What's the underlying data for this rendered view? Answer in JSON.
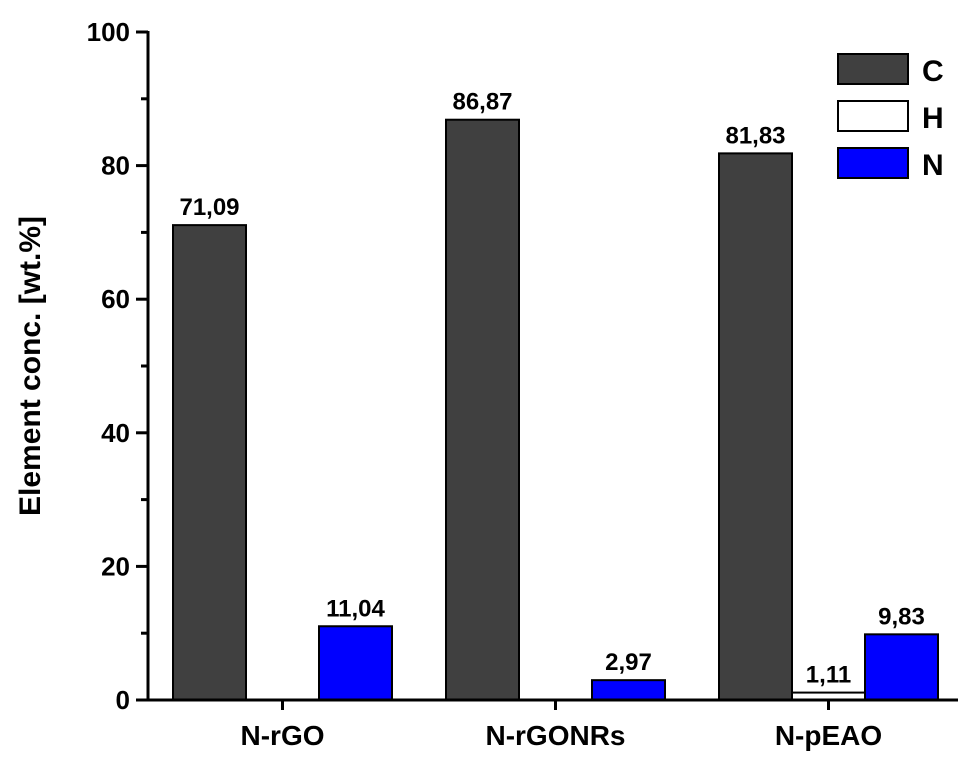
{
  "chart_data": {
    "type": "bar",
    "ylabel": "Element conc. [wt.%]",
    "ylim": [
      0,
      100
    ],
    "yticks": [
      0,
      20,
      40,
      60,
      80,
      100
    ],
    "categories": [
      "N-rGO",
      "N-rGONRs",
      "N-pEAO"
    ],
    "series": [
      {
        "name": "C",
        "color": "#404040",
        "values": [
          71.09,
          86.87,
          81.83
        ],
        "labels": [
          "71,09",
          "86,87",
          "81,83"
        ]
      },
      {
        "name": "H",
        "color": "#ffffff",
        "values": [
          0,
          0,
          1.11
        ],
        "labels": [
          "",
          "",
          "1,11"
        ]
      },
      {
        "name": "N",
        "color": "#0000ff",
        "values": [
          11.04,
          2.97,
          9.83
        ],
        "labels": [
          "11,04",
          "2,97",
          "9,83"
        ]
      }
    ],
    "legend_position": "top-right",
    "grid": false
  }
}
